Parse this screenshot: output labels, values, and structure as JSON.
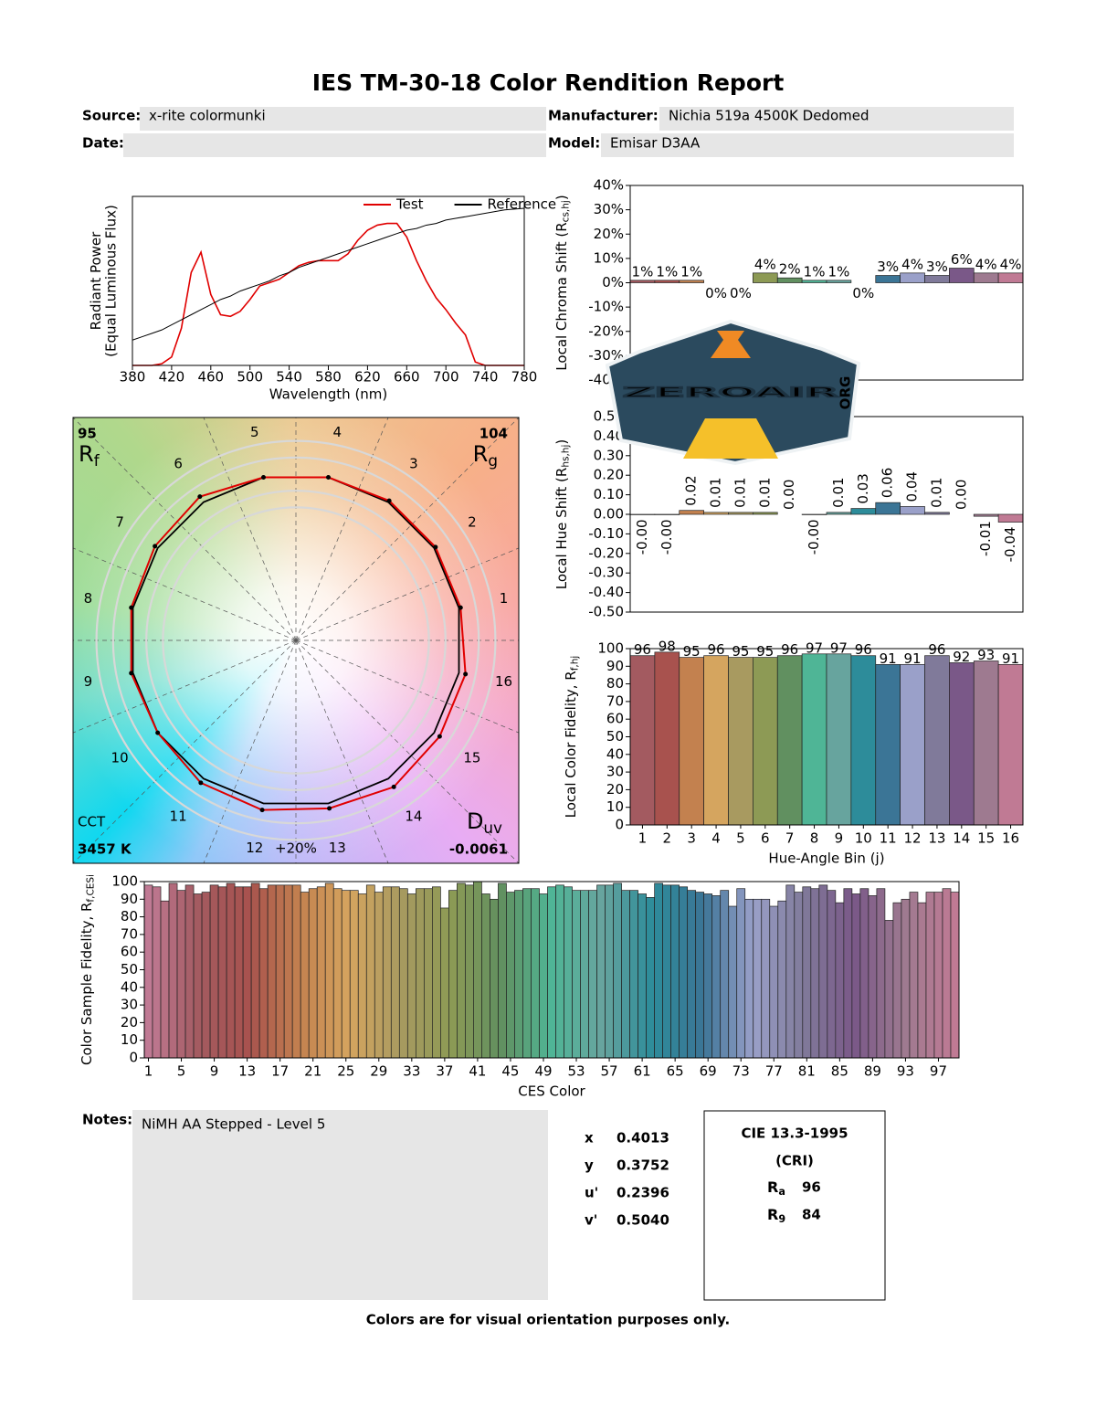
{
  "header": {
    "title": "IES TM-30-18 Color Rendition Report",
    "source_label": "Source:",
    "source": "x-rite colormunki",
    "date_label": "Date:",
    "manufacturer_label": "Manufacturer:",
    "manufacturer": "Nichia 519a 4500K Dedomed",
    "model_label": "Model:",
    "model": "Emisar D3AA"
  },
  "chart_data": [
    {
      "type": "line",
      "ylabel": [
        "Radiant Power"
      ],
      "ylabel2": "(Equal Luminous Flux)",
      "xlabel": "Wavelength (nm)",
      "x": [
        380,
        390,
        400,
        410,
        420,
        430,
        440,
        450,
        460,
        470,
        480,
        490,
        500,
        510,
        520,
        530,
        540,
        550,
        560,
        570,
        580,
        590,
        600,
        610,
        620,
        630,
        640,
        650,
        660,
        670,
        680,
        690,
        700,
        710,
        720,
        730,
        740,
        750,
        760,
        770,
        780
      ],
      "series": [
        {
          "name": "Test",
          "color": "#e00000",
          "values": [
            0,
            0,
            0,
            0.01,
            0.05,
            0.22,
            0.55,
            0.67,
            0.42,
            0.3,
            0.29,
            0.32,
            0.39,
            0.47,
            0.49,
            0.51,
            0.55,
            0.59,
            0.61,
            0.62,
            0.62,
            0.62,
            0.66,
            0.74,
            0.8,
            0.83,
            0.84,
            0.84,
            0.76,
            0.62,
            0.5,
            0.4,
            0.33,
            0.25,
            0.18,
            0.02,
            0,
            0,
            0,
            0,
            0
          ]
        },
        {
          "name": "Reference",
          "color": "#000000",
          "values": [
            0.15,
            0.17,
            0.19,
            0.21,
            0.24,
            0.27,
            0.3,
            0.33,
            0.36,
            0.39,
            0.41,
            0.44,
            0.46,
            0.48,
            0.5,
            0.53,
            0.55,
            0.58,
            0.6,
            0.62,
            0.64,
            0.66,
            0.68,
            0.7,
            0.72,
            0.74,
            0.76,
            0.78,
            0.8,
            0.81,
            0.83,
            0.84,
            0.86,
            0.87,
            0.88,
            0.89,
            0.9,
            0.91,
            0.92,
            0.925,
            0.93
          ]
        }
      ],
      "xlim": [
        380,
        780
      ],
      "xticks": [
        380,
        420,
        460,
        500,
        540,
        580,
        620,
        660,
        700,
        740,
        780
      ],
      "ylim": [
        0,
        1
      ],
      "legend": "upper right"
    },
    {
      "type": "polar",
      "categories": [
        1,
        2,
        3,
        4,
        5,
        6,
        7,
        8,
        9,
        10,
        11,
        12,
        13,
        14,
        15,
        16
      ],
      "series": [
        {
          "color": "#e00000",
          "values": [
            1.01,
            1.01,
            1.01,
            1.0,
            1.0,
            1.04,
            1.02,
            1.01,
            1.01,
            1.0,
            1.03,
            1.04,
            1.03,
            1.06,
            1.04,
            1.04
          ]
        },
        {
          "color": "#000000",
          "values": [
            1,
            1,
            1,
            1,
            1,
            1,
            1,
            1,
            1,
            1,
            1,
            1,
            1,
            1,
            1,
            1
          ]
        }
      ],
      "rf": 95,
      "rf_label": [
        "R",
        "f"
      ],
      "rg": 104,
      "rg_label": [
        "R",
        "g"
      ],
      "cct_label": "CCT",
      "cct": {
        "value": 3457,
        "label": "3457 K"
      },
      "duv_label": [
        "D",
        "uv"
      ],
      "duv": -0.0061,
      "ring_label": "+20%"
    },
    {
      "type": "bar",
      "ylabel": [
        "Local Chroma Shift (R",
        "cs,hj",
        ")"
      ],
      "values": [
        1,
        1,
        1,
        0,
        0,
        4,
        2,
        1,
        1,
        0,
        3,
        4,
        3,
        6,
        4,
        4
      ],
      "value_labels": [
        "1%",
        "1%",
        "1%",
        "0%",
        "0%",
        "4%",
        "2%",
        "1%",
        "1%",
        "0%",
        "3%",
        "4%",
        "3%",
        "6%",
        "4%",
        "4%"
      ],
      "colors": [
        "#a35a60",
        "#a8524e",
        "#c3814f",
        "#d5a55f",
        "#a89a60",
        "#8d9a55",
        "#619060",
        "#4fb596",
        "#67a49e",
        "#2d8c9a",
        "#3b7596",
        "#9aa0c9",
        "#807a9a",
        "#7a5888",
        "#9e7a90",
        "#c07a94"
      ],
      "ylim": [
        -40,
        40
      ],
      "yticks": [
        {
          "value": -40,
          "label": "-40%"
        },
        {
          "value": -30,
          "label": "-30%"
        },
        {
          "value": -20,
          "label": "-20%"
        },
        {
          "value": -10,
          "label": "-10%"
        },
        {
          "value": 0,
          "label": "0%"
        },
        {
          "value": 10,
          "label": "10%"
        },
        {
          "value": 20,
          "label": "20%"
        },
        {
          "value": 30,
          "label": "30%"
        },
        {
          "value": 40,
          "label": "40%"
        }
      ]
    },
    {
      "type": "bar",
      "ylabel": [
        "Local Hue Shift (R",
        "hs,hj",
        ")"
      ],
      "values": [
        -0.002,
        -0.002,
        0.02,
        0.01,
        0.01,
        0.01,
        0.0,
        -0.002,
        0.01,
        0.03,
        0.06,
        0.04,
        0.01,
        0.0,
        -0.01,
        -0.04
      ],
      "value_labels": [
        "-0.00",
        "-0.00",
        "0.02",
        "0.01",
        "0.01",
        "0.01",
        "0.00",
        "-0.00",
        "0.01",
        "0.03",
        "0.06",
        "0.04",
        "0.01",
        "0.00",
        "-0.01",
        "-0.04"
      ],
      "colors": [
        "#a35a60",
        "#a8524e",
        "#c3814f",
        "#d5a55f",
        "#a89a60",
        "#8d9a55",
        "#619060",
        "#4fb596",
        "#67a49e",
        "#2d8c9a",
        "#3b7596",
        "#9aa0c9",
        "#807a9a",
        "#7a5888",
        "#9e7a90",
        "#c07a94"
      ],
      "ylim": [
        -0.5,
        0.5
      ],
      "yticks": [
        {
          "value": -0.5,
          "label": "-0.50"
        },
        {
          "value": -0.4,
          "label": "-0.40"
        },
        {
          "value": -0.3,
          "label": "-0.30"
        },
        {
          "value": -0.2,
          "label": "-0.20"
        },
        {
          "value": -0.1,
          "label": "-0.10"
        },
        {
          "value": 0,
          "label": "0.00"
        },
        {
          "value": 0.1,
          "label": "0.10"
        },
        {
          "value": 0.2,
          "label": "0.20"
        },
        {
          "value": 0.3,
          "label": "0.30"
        },
        {
          "value": 0.4,
          "label": "0.40"
        },
        {
          "value": 0.5,
          "label": "0.50"
        }
      ]
    },
    {
      "type": "bar",
      "ylabel": [
        "Local Color Fidelity, R",
        "f,hj"
      ],
      "xlabel": "Hue-Angle Bin (j)",
      "categories": [
        1,
        2,
        3,
        4,
        5,
        6,
        7,
        8,
        9,
        10,
        11,
        12,
        13,
        14,
        15,
        16
      ],
      "values": [
        96,
        98,
        95,
        96,
        95,
        95,
        96,
        97,
        97,
        96,
        91,
        91,
        96,
        92,
        93,
        91
      ],
      "colors": [
        "#a35a60",
        "#a8524e",
        "#c3814f",
        "#d5a55f",
        "#a89a60",
        "#8d9a55",
        "#619060",
        "#4fb596",
        "#67a49e",
        "#2d8c9a",
        "#3b7596",
        "#9aa0c9",
        "#807a9a",
        "#7a5888",
        "#9e7a90",
        "#c07a94"
      ],
      "ylim": [
        0,
        100
      ],
      "yticks": [
        0,
        10,
        20,
        30,
        40,
        50,
        60,
        70,
        80,
        90,
        100
      ]
    },
    {
      "type": "bar",
      "ylabel": [
        "Color Sample Fidelity, R",
        "f,CESi"
      ],
      "xlabel": "CES Color",
      "categories": [
        1,
        null,
        null,
        null,
        5,
        null,
        null,
        null,
        9,
        null,
        null,
        null,
        13,
        null,
        null,
        null,
        17,
        null,
        null,
        null,
        21,
        null,
        null,
        null,
        25,
        null,
        null,
        null,
        29,
        null,
        null,
        null,
        33,
        null,
        null,
        null,
        37,
        null,
        null,
        null,
        41,
        null,
        null,
        null,
        45,
        null,
        null,
        null,
        49,
        null,
        null,
        null,
        53,
        null,
        null,
        null,
        57,
        null,
        null,
        null,
        61,
        null,
        null,
        null,
        65,
        null,
        null,
        null,
        69,
        null,
        null,
        null,
        73,
        null,
        null,
        null,
        77,
        null,
        null,
        null,
        81,
        null,
        null,
        null,
        85,
        null,
        null,
        null,
        89,
        null,
        null,
        null,
        93,
        null,
        null,
        null,
        97,
        null,
        null
      ],
      "values": [
        98,
        97,
        89,
        99,
        95,
        98,
        93,
        94,
        98,
        97,
        99,
        97,
        97,
        99,
        96,
        98,
        98,
        98,
        98,
        94,
        96,
        97,
        99,
        96,
        95,
        95,
        93,
        98,
        94,
        97,
        97,
        96,
        93,
        96,
        96,
        97,
        85,
        95,
        99,
        98,
        100,
        93,
        90,
        99,
        94,
        95,
        96,
        96,
        93,
        97,
        98,
        97,
        95,
        95,
        95,
        98,
        98,
        99,
        95,
        95,
        93,
        91,
        99,
        98,
        98,
        97,
        95,
        94,
        93,
        92,
        95,
        86,
        96,
        90,
        90,
        90,
        86,
        89,
        98,
        94,
        97,
        96,
        98,
        95,
        88,
        96,
        93,
        96,
        92,
        96,
        78,
        88,
        90,
        94,
        88,
        94,
        94,
        96,
        94
      ],
      "color_stops": [
        "#c07a94",
        "#a35a60",
        "#a8524e",
        "#c3814f",
        "#d5a55f",
        "#a89a60",
        "#8d9a55",
        "#619060",
        "#4fb596",
        "#67a49e",
        "#2d8c9a",
        "#3b7596",
        "#9aa0c9",
        "#807a9a",
        "#7a5888",
        "#9e7a90",
        "#c07a94"
      ],
      "ylim": [
        0,
        100
      ],
      "yticks": [
        0,
        10,
        20,
        30,
        40,
        50,
        60,
        70,
        80,
        90,
        100
      ]
    }
  ],
  "notes": {
    "label": "Notes:",
    "text": "NiMH AA Stepped - Level 5"
  },
  "colorimetry": {
    "rows": [
      [
        "x",
        "0.4013"
      ],
      [
        "y",
        "0.3752"
      ],
      [
        "u'",
        "0.2396"
      ],
      [
        "v'",
        "0.5040"
      ]
    ]
  },
  "cri": {
    "title": "CIE 13.3-1995",
    "subtitle": "(CRI)",
    "rows": [
      [
        [
          "R",
          "a"
        ],
        "96"
      ],
      [
        [
          "R",
          "9"
        ],
        "84"
      ]
    ]
  },
  "footer": "Colors are for visual orientation purposes only.",
  "watermark": {
    "text": "ZEROAIR",
    "suffix": "ORG"
  }
}
